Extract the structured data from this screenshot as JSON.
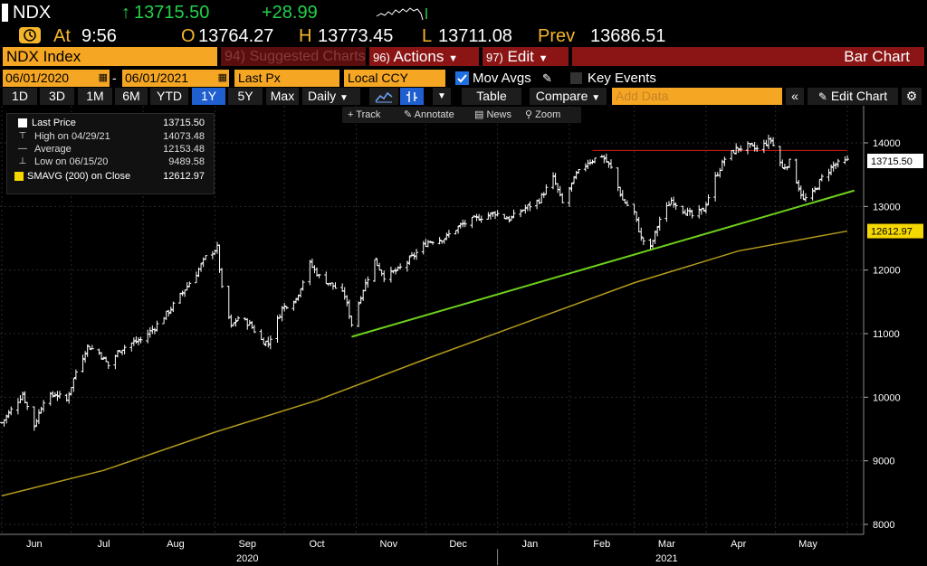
{
  "header": {
    "ticker": "NDX",
    "last_price": "13715.50",
    "change": "+28.99",
    "at_label": "At",
    "time": "9:56",
    "open_label": "O",
    "open": "13764.27",
    "high_label": "H",
    "high": "13773.45",
    "low_label": "L",
    "low": "13711.08",
    "prev_label": "Prev",
    "prev": "13686.51"
  },
  "toolbar": {
    "security": "NDX Index",
    "suggested_num": "94)",
    "suggested": "Suggested Charts",
    "actions_num": "96)",
    "actions": "Actions",
    "edit_num": "97)",
    "edit": "Edit",
    "chart_type": "Bar Chart"
  },
  "settings": {
    "start_date": "06/01/2020",
    "end_date": "06/01/2021",
    "separator": "-",
    "field": "Last Px",
    "currency": "Local CCY",
    "mov_avgs": "Mov Avgs",
    "key_events": "Key Events"
  },
  "periods": {
    "items": [
      "1D",
      "3D",
      "1M",
      "6M",
      "YTD",
      "1Y",
      "5Y",
      "Max"
    ],
    "selected": "1Y",
    "frequency": "Daily",
    "table": "Table",
    "compare": "Compare",
    "add_data_placeholder": "Add Data",
    "edit_chart": "Edit Chart"
  },
  "chart_tools": [
    "Track",
    "Annotate",
    "News",
    "Zoom"
  ],
  "legend": {
    "last_price_label": "Last Price",
    "last_price_value": "13715.50",
    "high_label": "High on 04/29/21",
    "high_value": "14073.48",
    "average_label": "Average",
    "average_value": "12153.48",
    "low_label": "Low on 06/15/20",
    "low_value": "9489.58",
    "sma_label": "SMAVG (200)  on Close",
    "sma_value": "12612.97"
  },
  "colors": {
    "accent_orange": "#f5a623",
    "dark_red": "#8b1515",
    "green": "#1fbf3a",
    "sma_yellow": "#b39b1c",
    "resistance_red": "#c01818",
    "up_green": "#22d14a"
  },
  "chart_data": {
    "type": "bar",
    "subtype": "ohlc",
    "x_tick_labels": [
      "Jun",
      "Jul",
      "Aug",
      "Sep",
      "Oct",
      "Nov",
      "Dec",
      "Jan",
      "Feb",
      "Mar",
      "Apr",
      "May"
    ],
    "x_year_labels": [
      "2020",
      "2021"
    ],
    "y_ticks": [
      8000,
      9000,
      10000,
      11000,
      12000,
      13000,
      14000
    ],
    "ylim": [
      7950,
      14700
    ],
    "price_tag": "13715.50",
    "sma_tag": "12612.97",
    "price_series": [
      [
        "2020-06-01",
        9600
      ],
      [
        "2020-06-05",
        9800
      ],
      [
        "2020-06-10",
        10050
      ],
      [
        "2020-06-15",
        9550
      ],
      [
        "2020-06-19",
        9950
      ],
      [
        "2020-06-24",
        10050
      ],
      [
        "2020-06-29",
        9950
      ],
      [
        "2020-07-03",
        10400
      ],
      [
        "2020-07-08",
        10800
      ],
      [
        "2020-07-13",
        10700
      ],
      [
        "2020-07-17",
        10500
      ],
      [
        "2020-07-22",
        10750
      ],
      [
        "2020-07-27",
        10850
      ],
      [
        "2020-07-31",
        10900
      ],
      [
        "2020-08-06",
        11100
      ],
      [
        "2020-08-12",
        11350
      ],
      [
        "2020-08-18",
        11650
      ],
      [
        "2020-08-24",
        11950
      ],
      [
        "2020-08-28",
        12200
      ],
      [
        "2020-09-02",
        12350
      ],
      [
        "2020-09-04",
        11700
      ],
      [
        "2020-09-08",
        11100
      ],
      [
        "2020-09-11",
        11250
      ],
      [
        "2020-09-16",
        11150
      ],
      [
        "2020-09-21",
        10900
      ],
      [
        "2020-09-24",
        10850
      ],
      [
        "2020-09-30",
        11400
      ],
      [
        "2020-10-06",
        11550
      ],
      [
        "2020-10-12",
        12100
      ],
      [
        "2020-10-16",
        11900
      ],
      [
        "2020-10-22",
        11750
      ],
      [
        "2020-10-27",
        11600
      ],
      [
        "2020-10-30",
        11150
      ],
      [
        "2020-11-04",
        11700
      ],
      [
        "2020-11-09",
        12150
      ],
      [
        "2020-11-13",
        11900
      ],
      [
        "2020-11-19",
        12000
      ],
      [
        "2020-11-25",
        12200
      ],
      [
        "2020-12-02",
        12450
      ],
      [
        "2020-12-09",
        12500
      ],
      [
        "2020-12-16",
        12700
      ],
      [
        "2020-12-22",
        12800
      ],
      [
        "2020-12-31",
        12900
      ],
      [
        "2021-01-06",
        12800
      ],
      [
        "2021-01-12",
        12950
      ],
      [
        "2021-01-19",
        13100
      ],
      [
        "2021-01-25",
        13450
      ],
      [
        "2021-01-29",
        13050
      ],
      [
        "2021-02-04",
        13500
      ],
      [
        "2021-02-09",
        13700
      ],
      [
        "2021-02-15",
        13800
      ],
      [
        "2021-02-19",
        13600
      ],
      [
        "2021-02-24",
        13100
      ],
      [
        "2021-03-01",
        12900
      ],
      [
        "2021-03-04",
        12500
      ],
      [
        "2021-03-08",
        12350
      ],
      [
        "2021-03-12",
        12800
      ],
      [
        "2021-03-17",
        13100
      ],
      [
        "2021-03-22",
        12950
      ],
      [
        "2021-03-26",
        12850
      ],
      [
        "2021-03-31",
        12950
      ],
      [
        "2021-04-05",
        13450
      ],
      [
        "2021-04-09",
        13750
      ],
      [
        "2021-04-14",
        13900
      ],
      [
        "2021-04-19",
        13950
      ],
      [
        "2021-04-23",
        13900
      ],
      [
        "2021-04-29",
        14050
      ],
      [
        "2021-05-04",
        13600
      ],
      [
        "2021-05-07",
        13700
      ],
      [
        "2021-05-11",
        13300
      ],
      [
        "2021-05-13",
        13100
      ],
      [
        "2021-05-17",
        13200
      ],
      [
        "2021-05-21",
        13450
      ],
      [
        "2021-05-26",
        13650
      ],
      [
        "2021-06-01",
        13715.5
      ]
    ],
    "sma_series": [
      [
        "2020-06-01",
        8450
      ],
      [
        "2020-07-15",
        8850
      ],
      [
        "2020-09-01",
        9450
      ],
      [
        "2020-10-15",
        9950
      ],
      [
        "2020-12-01",
        10600
      ],
      [
        "2021-01-15",
        11200
      ],
      [
        "2021-03-01",
        11800
      ],
      [
        "2021-04-15",
        12300
      ],
      [
        "2021-06-01",
        12612.97
      ]
    ],
    "trendline": [
      [
        "2020-10-30",
        10950
      ],
      [
        "2021-06-04",
        13250
      ]
    ],
    "resistance_line": [
      [
        "2021-02-11",
        13880
      ],
      [
        "2021-06-01",
        13880
      ]
    ]
  }
}
